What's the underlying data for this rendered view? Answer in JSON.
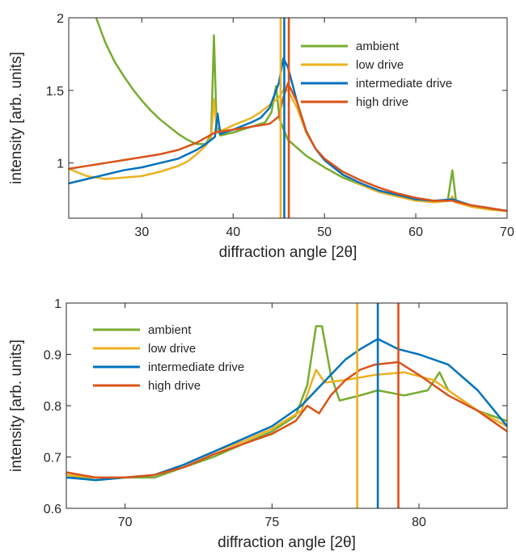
{
  "chart_data": [
    {
      "type": "line",
      "xlabel": "diffraction angle [2θ]",
      "ylabel": "intensity [arb. units]",
      "xlim": [
        22,
        70
      ],
      "ylim": [
        0.62,
        2.0
      ],
      "xticks": [
        30,
        40,
        50,
        60,
        70
      ],
      "yticks": [
        1,
        1.5,
        2
      ],
      "ytick_labels": [
        "1",
        "1.5",
        "2"
      ],
      "legend_position": "top-right",
      "vlines": [
        {
          "series": "low drive",
          "x": 45.2
        },
        {
          "series": "intermediate drive",
          "x": 45.6
        },
        {
          "series": "high drive",
          "x": 46.1
        }
      ],
      "series": [
        {
          "name": "ambient",
          "color": "#77AC30",
          "points": [
            [
              25.0,
              2.0
            ],
            [
              26,
              1.83
            ],
            [
              27,
              1.7
            ],
            [
              28,
              1.6
            ],
            [
              29,
              1.51
            ],
            [
              30,
              1.43
            ],
            [
              31,
              1.36
            ],
            [
              32,
              1.3
            ],
            [
              33,
              1.25
            ],
            [
              34,
              1.2
            ],
            [
              35,
              1.16
            ],
            [
              36,
              1.13
            ],
            [
              37,
              1.13
            ],
            [
              37.6,
              1.2
            ],
            [
              37.9,
              1.88
            ],
            [
              38.2,
              1.25
            ],
            [
              38.6,
              1.19
            ],
            [
              40,
              1.21
            ],
            [
              42,
              1.25
            ],
            [
              43.5,
              1.28
            ],
            [
              44.2,
              1.35
            ],
            [
              44.7,
              1.53
            ],
            [
              45.1,
              1.3
            ],
            [
              46,
              1.16
            ],
            [
              48,
              1.05
            ],
            [
              50,
              0.97
            ],
            [
              52,
              0.9
            ],
            [
              54,
              0.85
            ],
            [
              56,
              0.8
            ],
            [
              58,
              0.77
            ],
            [
              60,
              0.75
            ],
            [
              62,
              0.73
            ],
            [
              63.5,
              0.74
            ],
            [
              64.0,
              0.95
            ],
            [
              64.4,
              0.74
            ],
            [
              66,
              0.7
            ],
            [
              68,
              0.68
            ],
            [
              70,
              0.67
            ]
          ]
        },
        {
          "name": "low drive",
          "color": "#EDB120",
          "points": [
            [
              22,
              0.96
            ],
            [
              24,
              0.91
            ],
            [
              26,
              0.89
            ],
            [
              28,
              0.9
            ],
            [
              30,
              0.91
            ],
            [
              32,
              0.94
            ],
            [
              34,
              0.98
            ],
            [
              35,
              1.01
            ],
            [
              36,
              1.06
            ],
            [
              37,
              1.12
            ],
            [
              37.6,
              1.18
            ],
            [
              37.9,
              1.44
            ],
            [
              38.2,
              1.22
            ],
            [
              39,
              1.23
            ],
            [
              40,
              1.26
            ],
            [
              42,
              1.31
            ],
            [
              43,
              1.35
            ],
            [
              44,
              1.4
            ],
            [
              45,
              1.45
            ],
            [
              45.6,
              1.51
            ],
            [
              46,
              1.5
            ],
            [
              47,
              1.38
            ],
            [
              48,
              1.21
            ],
            [
              49,
              1.1
            ],
            [
              50,
              1.02
            ],
            [
              52,
              0.92
            ],
            [
              54,
              0.85
            ],
            [
              56,
              0.8
            ],
            [
              58,
              0.77
            ],
            [
              60,
              0.74
            ],
            [
              62,
              0.73
            ],
            [
              63.7,
              0.74
            ],
            [
              64.0,
              0.77
            ],
            [
              64.3,
              0.73
            ],
            [
              66,
              0.7
            ],
            [
              68,
              0.68
            ],
            [
              70,
              0.67
            ]
          ]
        },
        {
          "name": "intermediate drive",
          "color": "#0072BD",
          "points": [
            [
              22,
              0.86
            ],
            [
              24,
              0.89
            ],
            [
              26,
              0.92
            ],
            [
              28,
              0.95
            ],
            [
              30,
              0.97
            ],
            [
              32,
              1.0
            ],
            [
              34,
              1.03
            ],
            [
              36,
              1.09
            ],
            [
              37,
              1.13
            ],
            [
              38,
              1.18
            ],
            [
              38.3,
              1.34
            ],
            [
              38.6,
              1.2
            ],
            [
              40,
              1.23
            ],
            [
              42,
              1.28
            ],
            [
              43,
              1.31
            ],
            [
              44,
              1.38
            ],
            [
              45,
              1.55
            ],
            [
              45.5,
              1.72
            ],
            [
              46,
              1.66
            ],
            [
              47,
              1.42
            ],
            [
              48,
              1.22
            ],
            [
              49,
              1.1
            ],
            [
              50,
              1.02
            ],
            [
              52,
              0.92
            ],
            [
              54,
              0.86
            ],
            [
              56,
              0.81
            ],
            [
              58,
              0.78
            ],
            [
              60,
              0.75
            ],
            [
              62,
              0.74
            ],
            [
              64,
              0.75
            ],
            [
              66,
              0.71
            ],
            [
              68,
              0.69
            ],
            [
              70,
              0.67
            ]
          ]
        },
        {
          "name": "high drive",
          "color": "#D95319",
          "points": [
            [
              22,
              0.96
            ],
            [
              24,
              0.98
            ],
            [
              26,
              1.0
            ],
            [
              28,
              1.02
            ],
            [
              30,
              1.04
            ],
            [
              32,
              1.06
            ],
            [
              34,
              1.09
            ],
            [
              36,
              1.14
            ],
            [
              38,
              1.21
            ],
            [
              40,
              1.23
            ],
            [
              42,
              1.25
            ],
            [
              43,
              1.26
            ],
            [
              44,
              1.27
            ],
            [
              45,
              1.32
            ],
            [
              45.5,
              1.45
            ],
            [
              46,
              1.55
            ],
            [
              47,
              1.42
            ],
            [
              48,
              1.22
            ],
            [
              49,
              1.1
            ],
            [
              50,
              1.03
            ],
            [
              52,
              0.94
            ],
            [
              54,
              0.88
            ],
            [
              56,
              0.83
            ],
            [
              58,
              0.79
            ],
            [
              60,
              0.76
            ],
            [
              62,
              0.74
            ],
            [
              64,
              0.74
            ],
            [
              66,
              0.71
            ],
            [
              68,
              0.69
            ],
            [
              70,
              0.67
            ]
          ]
        }
      ]
    },
    {
      "type": "line",
      "xlabel": "diffraction angle [2θ]",
      "ylabel": "intensity [arb. units]",
      "xlim": [
        68,
        83
      ],
      "ylim": [
        0.6,
        1.0
      ],
      "xticks": [
        70,
        75,
        80
      ],
      "yticks": [
        0.6,
        0.7,
        0.8,
        0.9,
        1.0
      ],
      "ytick_labels": [
        "0.6",
        "0.7",
        "0.8",
        "0.9",
        "1"
      ],
      "legend_position": "top-left",
      "vlines": [
        {
          "series": "low drive",
          "x": 77.9
        },
        {
          "series": "intermediate drive",
          "x": 78.6
        },
        {
          "series": "high drive",
          "x": 79.3
        }
      ],
      "series": [
        {
          "name": "ambient",
          "color": "#77AC30",
          "points": [
            [
              68,
              0.665
            ],
            [
              69,
              0.655
            ],
            [
              70,
              0.66
            ],
            [
              71,
              0.66
            ],
            [
              72,
              0.68
            ],
            [
              73,
              0.7
            ],
            [
              74,
              0.725
            ],
            [
              75,
              0.75
            ],
            [
              75.8,
              0.78
            ],
            [
              76.2,
              0.84
            ],
            [
              76.5,
              0.955
            ],
            [
              76.7,
              0.955
            ],
            [
              77.0,
              0.86
            ],
            [
              77.3,
              0.81
            ],
            [
              78,
              0.82
            ],
            [
              78.6,
              0.83
            ],
            [
              79.5,
              0.82
            ],
            [
              80.3,
              0.83
            ],
            [
              80.7,
              0.865
            ],
            [
              81.0,
              0.83
            ],
            [
              82,
              0.79
            ],
            [
              83,
              0.77
            ]
          ]
        },
        {
          "name": "low drive",
          "color": "#EDB120",
          "points": [
            [
              68,
              0.665
            ],
            [
              69,
              0.66
            ],
            [
              70,
              0.66
            ],
            [
              71,
              0.665
            ],
            [
              72,
              0.685
            ],
            [
              73,
              0.71
            ],
            [
              74,
              0.73
            ],
            [
              75,
              0.755
            ],
            [
              76,
              0.79
            ],
            [
              76.5,
              0.87
            ],
            [
              76.8,
              0.845
            ],
            [
              77.5,
              0.85
            ],
            [
              78.5,
              0.86
            ],
            [
              79.5,
              0.865
            ],
            [
              80.5,
              0.85
            ],
            [
              81,
              0.83
            ],
            [
              82,
              0.79
            ],
            [
              83,
              0.76
            ]
          ]
        },
        {
          "name": "intermediate drive",
          "color": "#0072BD",
          "points": [
            [
              68,
              0.66
            ],
            [
              69,
              0.655
            ],
            [
              70,
              0.66
            ],
            [
              71,
              0.665
            ],
            [
              72,
              0.685
            ],
            [
              73,
              0.71
            ],
            [
              74,
              0.735
            ],
            [
              75,
              0.76
            ],
            [
              76,
              0.8
            ],
            [
              76.5,
              0.83
            ],
            [
              77,
              0.86
            ],
            [
              77.5,
              0.89
            ],
            [
              78,
              0.91
            ],
            [
              78.6,
              0.93
            ],
            [
              79.3,
              0.91
            ],
            [
              80,
              0.9
            ],
            [
              81,
              0.88
            ],
            [
              82,
              0.83
            ],
            [
              83,
              0.76
            ]
          ]
        },
        {
          "name": "high drive",
          "color": "#D95319",
          "points": [
            [
              68,
              0.67
            ],
            [
              69,
              0.66
            ],
            [
              70,
              0.66
            ],
            [
              71,
              0.665
            ],
            [
              72,
              0.68
            ],
            [
              73,
              0.705
            ],
            [
              74,
              0.725
            ],
            [
              75,
              0.745
            ],
            [
              75.8,
              0.77
            ],
            [
              76.2,
              0.8
            ],
            [
              76.6,
              0.785
            ],
            [
              77,
              0.82
            ],
            [
              77.5,
              0.85
            ],
            [
              78,
              0.87
            ],
            [
              78.5,
              0.88
            ],
            [
              79.3,
              0.885
            ],
            [
              80,
              0.86
            ],
            [
              81,
              0.82
            ],
            [
              82,
              0.79
            ],
            [
              83,
              0.75
            ]
          ]
        }
      ]
    }
  ]
}
